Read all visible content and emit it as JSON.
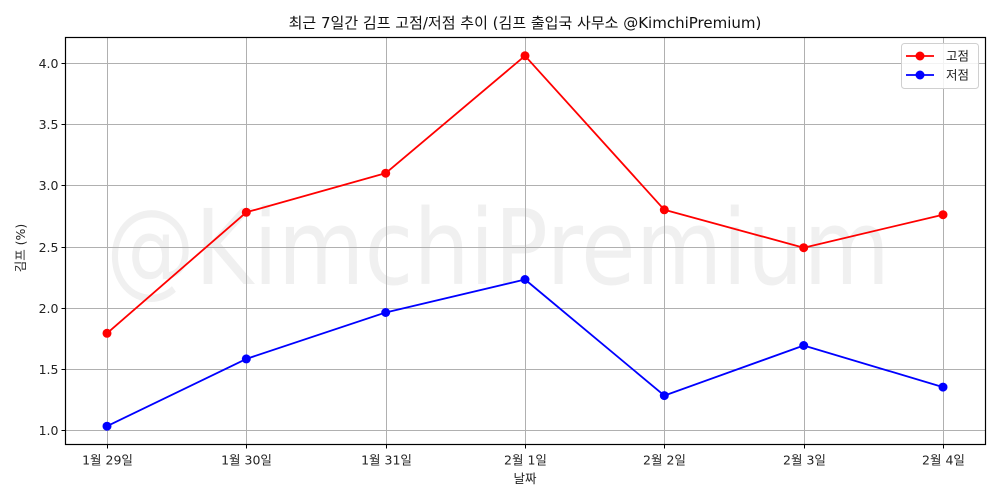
{
  "chart_data": {
    "type": "line",
    "title": "최근 7일간 김프 고점/저점 추이 (김프 출입국 사무소 @KimchiPremium)",
    "xlabel": "날짜",
    "ylabel": "김프 (%)",
    "categories": [
      "1월 29일",
      "1월 30일",
      "1월 31일",
      "2월 1일",
      "2월 2일",
      "2월 3일",
      "2월 4일"
    ],
    "series": [
      {
        "name": "고점",
        "color": "#ff0000",
        "values": [
          1.79,
          2.78,
          3.1,
          4.06,
          2.8,
          2.49,
          2.76
        ]
      },
      {
        "name": "저점",
        "color": "#0000ff",
        "values": [
          1.03,
          1.58,
          1.96,
          2.23,
          1.28,
          1.69,
          1.35
        ]
      }
    ],
    "yticks": [
      1.0,
      1.5,
      2.0,
      2.5,
      3.0,
      3.5,
      4.0
    ],
    "ytick_labels": [
      "1.0",
      "1.5",
      "2.0",
      "2.5",
      "3.0",
      "3.5",
      "4.0"
    ],
    "ylim": [
      0.88,
      4.21
    ],
    "grid": true,
    "legend_position": "upper right",
    "watermark": "@KimchiPremium"
  }
}
